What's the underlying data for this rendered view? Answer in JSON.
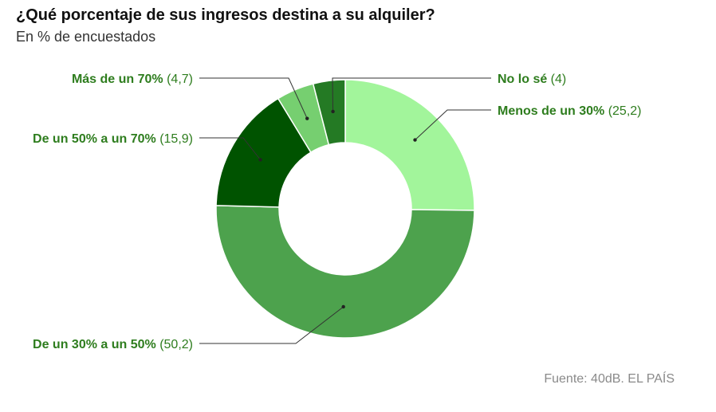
{
  "title": "¿Qué porcentaje de sus ingresos destina a su alquiler?",
  "subtitle": "En % de encuestados",
  "source": "Fuente: 40dB. EL PAÍS",
  "colors": {
    "label": "#2e7d1e",
    "leader": "#333333",
    "separator": "#ffffff"
  },
  "chart_data": {
    "type": "pie",
    "donut": true,
    "legend": "none",
    "categories": [
      "Menos de un 30%",
      "De un 30% a un 50%",
      "De un 50% a un 70%",
      "Más de un 70%",
      "No lo sé"
    ],
    "values": [
      25.2,
      50.2,
      15.9,
      4.7,
      4
    ],
    "value_labels": [
      "(25,2)",
      "(50,2)",
      "(15,9)",
      "(4,7)",
      "(4)"
    ],
    "colors": [
      "#a2f59b",
      "#4da24d",
      "#005300",
      "#76cf70",
      "#247a24"
    ]
  }
}
